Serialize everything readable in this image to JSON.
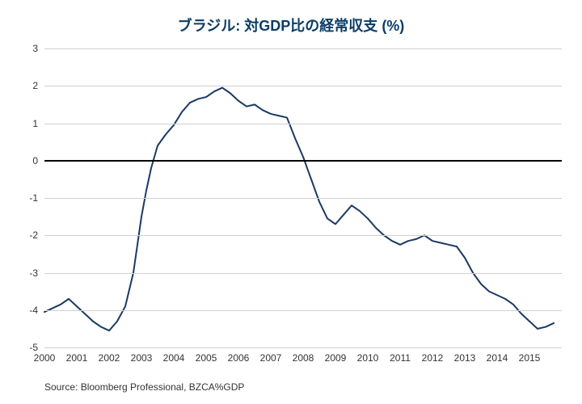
{
  "chart": {
    "type": "line",
    "title": "ブラジル: 対GDP比の経常収支 (%)",
    "title_color": "#0b3d66",
    "title_fontsize": 18,
    "source_text": "Source: Bloomberg Professional, BZCA%GDP",
    "background_color": "#ffffff",
    "grid_color": "#d0d0d0",
    "zero_line_color": "#000000",
    "zero_line_width": 2,
    "line_color": "#1b3a63",
    "line_width": 2,
    "ylim": [
      -5,
      3
    ],
    "yticks": [
      -5,
      -4,
      -3,
      -2,
      -1,
      0,
      1,
      2,
      3
    ],
    "xlim": [
      2000,
      2016
    ],
    "xticks": [
      2000,
      2001,
      2002,
      2003,
      2004,
      2005,
      2006,
      2007,
      2008,
      2009,
      2010,
      2011,
      2012,
      2013,
      2014,
      2015
    ],
    "label_fontsize": 12,
    "label_color": "#333333",
    "series": [
      {
        "x": 2000.0,
        "y": -4.05
      },
      {
        "x": 2000.25,
        "y": -3.95
      },
      {
        "x": 2000.5,
        "y": -3.85
      },
      {
        "x": 2000.75,
        "y": -3.7
      },
      {
        "x": 2001.0,
        "y": -3.9
      },
      {
        "x": 2001.25,
        "y": -4.1
      },
      {
        "x": 2001.5,
        "y": -4.3
      },
      {
        "x": 2001.75,
        "y": -4.45
      },
      {
        "x": 2002.0,
        "y": -4.55
      },
      {
        "x": 2002.25,
        "y": -4.3
      },
      {
        "x": 2002.5,
        "y": -3.9
      },
      {
        "x": 2002.75,
        "y": -3.0
      },
      {
        "x": 2003.0,
        "y": -1.5
      },
      {
        "x": 2003.15,
        "y": -0.8
      },
      {
        "x": 2003.3,
        "y": -0.2
      },
      {
        "x": 2003.5,
        "y": 0.4
      },
      {
        "x": 2003.75,
        "y": 0.7
      },
      {
        "x": 2004.0,
        "y": 0.95
      },
      {
        "x": 2004.25,
        "y": 1.3
      },
      {
        "x": 2004.5,
        "y": 1.55
      },
      {
        "x": 2004.75,
        "y": 1.65
      },
      {
        "x": 2005.0,
        "y": 1.7
      },
      {
        "x": 2005.25,
        "y": 1.85
      },
      {
        "x": 2005.5,
        "y": 1.95
      },
      {
        "x": 2005.75,
        "y": 1.8
      },
      {
        "x": 2006.0,
        "y": 1.6
      },
      {
        "x": 2006.25,
        "y": 1.45
      },
      {
        "x": 2006.5,
        "y": 1.5
      },
      {
        "x": 2006.75,
        "y": 1.35
      },
      {
        "x": 2007.0,
        "y": 1.25
      },
      {
        "x": 2007.25,
        "y": 1.2
      },
      {
        "x": 2007.5,
        "y": 1.15
      },
      {
        "x": 2007.75,
        "y": 0.6
      },
      {
        "x": 2008.0,
        "y": 0.1
      },
      {
        "x": 2008.25,
        "y": -0.5
      },
      {
        "x": 2008.5,
        "y": -1.1
      },
      {
        "x": 2008.75,
        "y": -1.55
      },
      {
        "x": 2009.0,
        "y": -1.7
      },
      {
        "x": 2009.25,
        "y": -1.45
      },
      {
        "x": 2009.5,
        "y": -1.2
      },
      {
        "x": 2009.75,
        "y": -1.35
      },
      {
        "x": 2010.0,
        "y": -1.55
      },
      {
        "x": 2010.25,
        "y": -1.8
      },
      {
        "x": 2010.5,
        "y": -2.0
      },
      {
        "x": 2010.75,
        "y": -2.15
      },
      {
        "x": 2011.0,
        "y": -2.25
      },
      {
        "x": 2011.25,
        "y": -2.15
      },
      {
        "x": 2011.5,
        "y": -2.1
      },
      {
        "x": 2011.75,
        "y": -2.0
      },
      {
        "x": 2012.0,
        "y": -2.15
      },
      {
        "x": 2012.25,
        "y": -2.2
      },
      {
        "x": 2012.5,
        "y": -2.25
      },
      {
        "x": 2012.75,
        "y": -2.3
      },
      {
        "x": 2013.0,
        "y": -2.6
      },
      {
        "x": 2013.25,
        "y": -3.0
      },
      {
        "x": 2013.5,
        "y": -3.3
      },
      {
        "x": 2013.75,
        "y": -3.5
      },
      {
        "x": 2014.0,
        "y": -3.6
      },
      {
        "x": 2014.25,
        "y": -3.7
      },
      {
        "x": 2014.5,
        "y": -3.85
      },
      {
        "x": 2014.75,
        "y": -4.1
      },
      {
        "x": 2015.0,
        "y": -4.3
      },
      {
        "x": 2015.25,
        "y": -4.5
      },
      {
        "x": 2015.5,
        "y": -4.45
      },
      {
        "x": 2015.75,
        "y": -4.35
      }
    ]
  }
}
